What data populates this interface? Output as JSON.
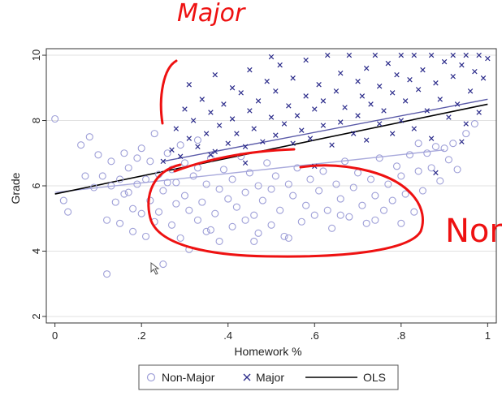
{
  "chart_data": {
    "type": "scatter",
    "title": "",
    "xlabel": "Homework %",
    "ylabel": "Grade",
    "xlim": [
      -0.02,
      1.02
    ],
    "ylim": [
      1.8,
      10.2
    ],
    "xticks": [
      {
        "value": 0,
        "label": "0"
      },
      {
        "value": 0.2,
        "label": ".2"
      },
      {
        "value": 0.4,
        "label": ".4"
      },
      {
        "value": 0.6,
        "label": ".6"
      },
      {
        "value": 0.8,
        "label": ".8"
      },
      {
        "value": 1,
        "label": "1"
      }
    ],
    "yticks": [
      {
        "value": 2,
        "label": "2"
      },
      {
        "value": 4,
        "label": "4"
      },
      {
        "value": 6,
        "label": "6"
      },
      {
        "value": 8,
        "label": "8"
      },
      {
        "value": 10,
        "label": "10"
      }
    ],
    "grid": true,
    "legend_position": "bottom",
    "series": [
      {
        "name": "Non-Major",
        "marker": "circle",
        "color": "#9fa0d8",
        "points": [
          [
            0.0,
            8.05
          ],
          [
            0.02,
            5.55
          ],
          [
            0.03,
            5.2
          ],
          [
            0.06,
            7.25
          ],
          [
            0.07,
            6.3
          ],
          [
            0.08,
            7.5
          ],
          [
            0.09,
            5.95
          ],
          [
            0.1,
            6.95
          ],
          [
            0.11,
            6.3
          ],
          [
            0.12,
            3.3
          ],
          [
            0.12,
            4.95
          ],
          [
            0.13,
            6.0
          ],
          [
            0.13,
            6.75
          ],
          [
            0.14,
            5.5
          ],
          [
            0.15,
            4.85
          ],
          [
            0.15,
            6.2
          ],
          [
            0.16,
            7.0
          ],
          [
            0.17,
            5.8
          ],
          [
            0.17,
            6.55
          ],
          [
            0.18,
            4.6
          ],
          [
            0.18,
            5.3
          ],
          [
            0.19,
            6.05
          ],
          [
            0.19,
            6.85
          ],
          [
            0.2,
            5.15
          ],
          [
            0.2,
            7.15
          ],
          [
            0.21,
            4.45
          ],
          [
            0.21,
            6.2
          ],
          [
            0.22,
            5.55
          ],
          [
            0.22,
            6.75
          ],
          [
            0.23,
            4.9
          ],
          [
            0.23,
            7.6
          ],
          [
            0.24,
            5.2
          ],
          [
            0.24,
            6.35
          ],
          [
            0.25,
            3.6
          ],
          [
            0.25,
            5.85
          ],
          [
            0.26,
            7.0
          ],
          [
            0.27,
            4.8
          ],
          [
            0.27,
            6.5
          ],
          [
            0.28,
            5.45
          ],
          [
            0.28,
            6.1
          ],
          [
            0.29,
            4.4
          ],
          [
            0.29,
            7.25
          ],
          [
            0.3,
            5.7
          ],
          [
            0.3,
            6.7
          ],
          [
            0.31,
            4.05
          ],
          [
            0.31,
            5.25
          ],
          [
            0.32,
            6.3
          ],
          [
            0.33,
            4.95
          ],
          [
            0.33,
            7.4
          ],
          [
            0.34,
            5.5
          ],
          [
            0.35,
            6.05
          ],
          [
            0.35,
            4.6
          ],
          [
            0.36,
            6.85
          ],
          [
            0.37,
            5.15
          ],
          [
            0.38,
            5.9
          ],
          [
            0.38,
            4.3
          ],
          [
            0.39,
            6.5
          ],
          [
            0.4,
            5.6
          ],
          [
            0.41,
            4.75
          ],
          [
            0.41,
            6.2
          ],
          [
            0.42,
            5.35
          ],
          [
            0.43,
            6.9
          ],
          [
            0.44,
            4.95
          ],
          [
            0.44,
            5.8
          ],
          [
            0.45,
            6.4
          ],
          [
            0.46,
            5.1
          ],
          [
            0.47,
            4.55
          ],
          [
            0.47,
            6.0
          ],
          [
            0.48,
            5.55
          ],
          [
            0.49,
            6.7
          ],
          [
            0.5,
            4.8
          ],
          [
            0.5,
            5.9
          ],
          [
            0.51,
            6.3
          ],
          [
            0.52,
            5.25
          ],
          [
            0.53,
            4.45
          ],
          [
            0.54,
            6.05
          ],
          [
            0.55,
            5.7
          ],
          [
            0.56,
            6.55
          ],
          [
            0.57,
            4.9
          ],
          [
            0.58,
            5.4
          ],
          [
            0.59,
            6.2
          ],
          [
            0.6,
            5.1
          ],
          [
            0.61,
            5.85
          ],
          [
            0.62,
            6.45
          ],
          [
            0.63,
            5.25
          ],
          [
            0.64,
            4.7
          ],
          [
            0.65,
            6.05
          ],
          [
            0.66,
            5.6
          ],
          [
            0.67,
            6.75
          ],
          [
            0.68,
            5.05
          ],
          [
            0.69,
            5.95
          ],
          [
            0.7,
            6.4
          ],
          [
            0.71,
            5.4
          ],
          [
            0.72,
            4.85
          ],
          [
            0.73,
            6.2
          ],
          [
            0.74,
            5.7
          ],
          [
            0.75,
            6.85
          ],
          [
            0.76,
            5.25
          ],
          [
            0.77,
            6.05
          ],
          [
            0.78,
            5.55
          ],
          [
            0.79,
            6.6
          ],
          [
            0.8,
            4.85
          ],
          [
            0.8,
            6.3
          ],
          [
            0.81,
            5.75
          ],
          [
            0.82,
            6.95
          ],
          [
            0.83,
            5.2
          ],
          [
            0.84,
            6.45
          ],
          [
            0.84,
            7.3
          ],
          [
            0.85,
            5.85
          ],
          [
            0.86,
            7.0
          ],
          [
            0.87,
            6.55
          ],
          [
            0.88,
            7.2
          ],
          [
            0.89,
            6.15
          ],
          [
            0.9,
            7.15
          ],
          [
            0.91,
            6.8
          ],
          [
            0.92,
            7.3
          ],
          [
            0.93,
            6.5
          ],
          [
            0.95,
            7.6
          ],
          [
            0.97,
            7.9
          ],
          [
            0.54,
            4.4
          ],
          [
            0.36,
            4.65
          ],
          [
            0.46,
            4.3
          ],
          [
            0.66,
            5.1
          ],
          [
            0.74,
            4.95
          ],
          [
            0.26,
            6.1
          ],
          [
            0.16,
            5.75
          ],
          [
            0.33,
            6.55
          ]
        ]
      },
      {
        "name": "Major",
        "marker": "x",
        "color": "#2b2b8a",
        "points": [
          [
            0.25,
            6.75
          ],
          [
            0.27,
            7.1
          ],
          [
            0.28,
            7.75
          ],
          [
            0.29,
            6.9
          ],
          [
            0.3,
            8.35
          ],
          [
            0.31,
            9.1
          ],
          [
            0.31,
            7.45
          ],
          [
            0.32,
            8.0
          ],
          [
            0.33,
            7.2
          ],
          [
            0.34,
            8.65
          ],
          [
            0.35,
            7.6
          ],
          [
            0.36,
            8.25
          ],
          [
            0.37,
            9.4
          ],
          [
            0.37,
            7.05
          ],
          [
            0.38,
            7.85
          ],
          [
            0.39,
            8.5
          ],
          [
            0.4,
            7.3
          ],
          [
            0.41,
            9.0
          ],
          [
            0.41,
            8.05
          ],
          [
            0.42,
            7.6
          ],
          [
            0.43,
            8.85
          ],
          [
            0.44,
            7.2
          ],
          [
            0.45,
            8.3
          ],
          [
            0.45,
            9.55
          ],
          [
            0.46,
            7.75
          ],
          [
            0.47,
            8.6
          ],
          [
            0.48,
            7.35
          ],
          [
            0.49,
            9.2
          ],
          [
            0.5,
            8.1
          ],
          [
            0.51,
            7.55
          ],
          [
            0.51,
            8.9
          ],
          [
            0.52,
            9.7
          ],
          [
            0.53,
            7.9
          ],
          [
            0.54,
            8.45
          ],
          [
            0.55,
            7.3
          ],
          [
            0.55,
            9.3
          ],
          [
            0.56,
            8.15
          ],
          [
            0.57,
            7.7
          ],
          [
            0.58,
            8.75
          ],
          [
            0.58,
            9.85
          ],
          [
            0.59,
            7.45
          ],
          [
            0.6,
            8.35
          ],
          [
            0.61,
            9.1
          ],
          [
            0.62,
            7.85
          ],
          [
            0.62,
            8.6
          ],
          [
            0.63,
            10.0
          ],
          [
            0.64,
            7.25
          ],
          [
            0.65,
            8.9
          ],
          [
            0.66,
            9.45
          ],
          [
            0.66,
            7.95
          ],
          [
            0.67,
            8.4
          ],
          [
            0.68,
            10.0
          ],
          [
            0.69,
            7.6
          ],
          [
            0.7,
            9.2
          ],
          [
            0.7,
            8.15
          ],
          [
            0.71,
            8.75
          ],
          [
            0.72,
            9.6
          ],
          [
            0.72,
            7.4
          ],
          [
            0.73,
            8.5
          ],
          [
            0.74,
            10.0
          ],
          [
            0.75,
            7.9
          ],
          [
            0.75,
            9.05
          ],
          [
            0.76,
            8.3
          ],
          [
            0.77,
            9.75
          ],
          [
            0.78,
            7.6
          ],
          [
            0.78,
            8.85
          ],
          [
            0.79,
            9.4
          ],
          [
            0.8,
            10.0
          ],
          [
            0.8,
            8.0
          ],
          [
            0.81,
            8.6
          ],
          [
            0.82,
            9.25
          ],
          [
            0.83,
            7.75
          ],
          [
            0.83,
            10.0
          ],
          [
            0.84,
            8.95
          ],
          [
            0.85,
            9.55
          ],
          [
            0.86,
            8.3
          ],
          [
            0.87,
            10.0
          ],
          [
            0.87,
            7.45
          ],
          [
            0.88,
            9.15
          ],
          [
            0.89,
            8.65
          ],
          [
            0.9,
            9.8
          ],
          [
            0.91,
            8.1
          ],
          [
            0.92,
            10.0
          ],
          [
            0.92,
            9.35
          ],
          [
            0.93,
            8.5
          ],
          [
            0.94,
            9.7
          ],
          [
            0.95,
            7.9
          ],
          [
            0.95,
            10.0
          ],
          [
            0.96,
            8.9
          ],
          [
            0.97,
            9.5
          ],
          [
            0.98,
            10.0
          ],
          [
            0.98,
            8.25
          ],
          [
            0.99,
            9.3
          ],
          [
            1.0,
            9.9
          ],
          [
            0.6,
            6.6
          ],
          [
            0.44,
            6.7
          ],
          [
            0.88,
            6.4
          ],
          [
            0.94,
            7.35
          ],
          [
            0.5,
            9.95
          ],
          [
            0.36,
            6.95
          ]
        ]
      }
    ],
    "fit_lines": [
      {
        "name": "Major fit",
        "color": "#5a5aa8",
        "from": [
          0.25,
          6.75
        ],
        "to": [
          1.0,
          8.65
        ]
      },
      {
        "name": "Non-Major fit",
        "color": "#a9aadc",
        "from": [
          0.0,
          5.8
        ],
        "to": [
          0.9,
          7.1
        ]
      },
      {
        "name": "OLS",
        "color": "#000000",
        "from": [
          0.0,
          5.75
        ],
        "to": [
          1.0,
          8.5
        ]
      }
    ],
    "legend": [
      {
        "label": "Non-Major",
        "marker": "circle",
        "color": "#9fa0d8"
      },
      {
        "label": "Major",
        "marker": "x",
        "color": "#2b2b8a"
      },
      {
        "label": "OLS",
        "marker": "line",
        "color": "#000000"
      }
    ]
  },
  "annotations": {
    "major_text": "Major",
    "non_text": "Non",
    "ink_color": "#ee1111"
  },
  "colors": {
    "plot_border": "#333333",
    "grid": "#e2e2e2",
    "pointer": "#555555"
  }
}
